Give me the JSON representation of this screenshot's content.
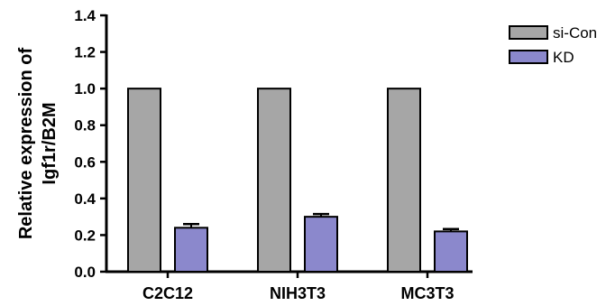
{
  "chart_data": {
    "type": "bar",
    "ylabel_lines": [
      "Relative expression of",
      "Igf1r/B2M"
    ],
    "xlabel": "",
    "ylim": [
      0,
      1.4
    ],
    "yticks": [
      0.0,
      0.2,
      0.4,
      0.6,
      0.8,
      1.0,
      1.2,
      1.4
    ],
    "ytick_labels": [
      "0.0",
      "0.2",
      "0.4",
      "0.6",
      "0.8",
      "1.0",
      "1.2",
      "1.4"
    ],
    "categories": [
      "C2C12",
      "NIH3T3",
      "MC3T3"
    ],
    "series": [
      {
        "name": "si-Con",
        "values": [
          1.0,
          1.0,
          1.0
        ],
        "errors": [
          0,
          0,
          0
        ],
        "color": "#a6a6a6"
      },
      {
        "name": "KD",
        "values": [
          0.24,
          0.3,
          0.22
        ],
        "errors": [
          0.02,
          0.015,
          0.013
        ],
        "color": "#8b88cc"
      }
    ],
    "legend_position": "top-right",
    "grid": false
  }
}
